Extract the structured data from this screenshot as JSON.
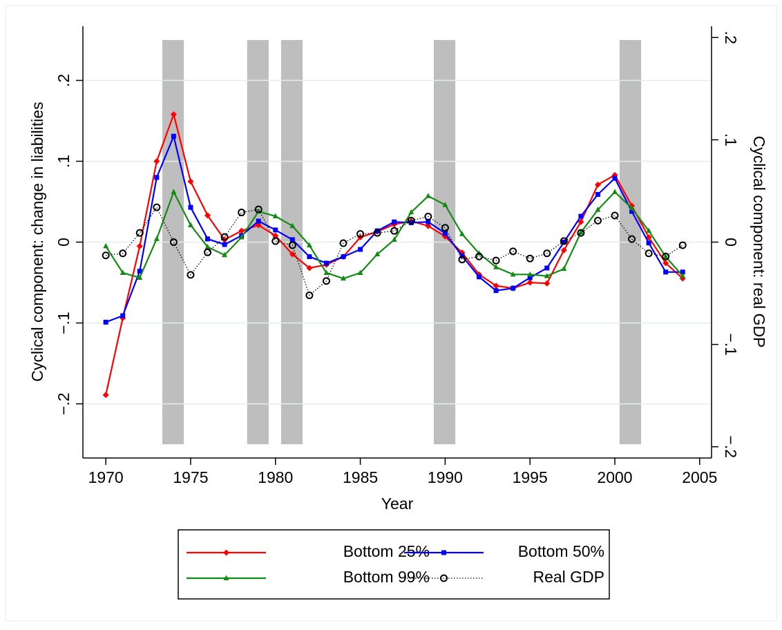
{
  "chart_data": {
    "type": "line",
    "x_label": "Year",
    "y_label": "Cyclical component: change in liabilities",
    "y2_label": "Cyclical component: real GDP",
    "x": [
      1970,
      1971,
      1972,
      1973,
      1974,
      1975,
      1976,
      1977,
      1978,
      1979,
      1980,
      1981,
      1982,
      1983,
      1984,
      1985,
      1986,
      1987,
      1988,
      1989,
      1990,
      1991,
      1992,
      1993,
      1994,
      1995,
      1996,
      1997,
      1998,
      1999,
      2000,
      2001,
      2002,
      2003,
      2004
    ],
    "series": [
      {
        "name": "Bottom 25%",
        "color": "#ff0000",
        "marker": "diamond",
        "line_style": "solid",
        "values": [
          -0.189,
          -0.094,
          -0.005,
          0.1,
          0.158,
          0.075,
          0.033,
          0.003,
          0.014,
          0.021,
          0.008,
          -0.015,
          -0.032,
          -0.028,
          -0.018,
          0.006,
          0.013,
          0.022,
          0.026,
          0.02,
          0.007,
          -0.013,
          -0.04,
          -0.054,
          -0.057,
          -0.05,
          -0.051,
          -0.01,
          0.025,
          0.071,
          0.083,
          0.045,
          0.006,
          -0.026,
          -0.045
        ]
      },
      {
        "name": "Bottom 50%",
        "color": "#0000ff",
        "marker": "square",
        "line_style": "solid",
        "values": [
          -0.099,
          -0.091,
          -0.036,
          0.08,
          0.131,
          0.043,
          0.004,
          -0.003,
          0.008,
          0.026,
          0.015,
          0.003,
          -0.018,
          -0.026,
          -0.018,
          -0.009,
          0.014,
          0.025,
          0.024,
          0.025,
          0.011,
          -0.017,
          -0.043,
          -0.06,
          -0.057,
          -0.044,
          -0.032,
          0.0,
          0.032,
          0.059,
          0.079,
          0.038,
          -0.001,
          -0.037,
          -0.037
        ]
      },
      {
        "name": "Bottom 99%",
        "color": "#138a13",
        "marker": "triangle",
        "line_style": "solid",
        "values": [
          -0.005,
          -0.038,
          -0.044,
          0.004,
          0.062,
          0.021,
          -0.006,
          -0.016,
          0.006,
          0.038,
          0.032,
          0.02,
          -0.004,
          -0.038,
          -0.045,
          -0.038,
          -0.015,
          0.003,
          0.037,
          0.057,
          0.046,
          0.01,
          -0.014,
          -0.031,
          -0.04,
          -0.04,
          -0.042,
          -0.033,
          0.012,
          0.04,
          0.062,
          0.042,
          0.014,
          -0.018,
          -0.042
        ]
      },
      {
        "name": "Real GDP",
        "color": "#000000",
        "marker": "hollow-circle",
        "line_style": "dotted",
        "axis": "y2",
        "values": [
          -0.013,
          -0.011,
          0.009,
          0.034,
          0.0,
          -0.032,
          -0.01,
          0.005,
          0.029,
          0.032,
          0.001,
          -0.003,
          -0.052,
          -0.038,
          -0.001,
          0.008,
          0.009,
          0.011,
          0.021,
          0.025,
          0.014,
          -0.017,
          -0.014,
          -0.018,
          -0.009,
          -0.016,
          -0.011,
          0.001,
          0.009,
          0.021,
          0.026,
          0.003,
          -0.011,
          -0.014,
          -0.003
        ]
      }
    ],
    "shaded_regions": [
      [
        1973.33,
        1974.6
      ],
      [
        1978.33,
        1979.6
      ],
      [
        1980.33,
        1981.6
      ],
      [
        1989.33,
        1990.6
      ],
      [
        2000.28,
        2001.55
      ]
    ],
    "shade_ylim": [
      -0.25,
      0.25
    ],
    "shade_color": "#bebebe",
    "xlim": [
      1968.65,
      2005.7
    ],
    "xticks": [
      1970,
      1975,
      1980,
      1985,
      1990,
      1995,
      2000,
      2005
    ],
    "ylim": [
      -0.267,
      0.267
    ],
    "yticks": [
      {
        "value": -0.2,
        "label": "−.2"
      },
      {
        "value": -0.1,
        "label": "−.1"
      },
      0,
      {
        "value": 0.1,
        "label": ".1"
      },
      {
        "value": 0.2,
        "label": ".2"
      }
    ],
    "y2lim": [
      -0.211,
      0.211
    ],
    "y2ticks": [
      {
        "value": -0.2,
        "label": "−.2"
      },
      {
        "value": -0.1,
        "label": "−.1"
      },
      0,
      {
        "value": 0.1,
        "label": ".1"
      },
      {
        "value": 0.2,
        "label": ".2"
      }
    ],
    "grid": true
  }
}
